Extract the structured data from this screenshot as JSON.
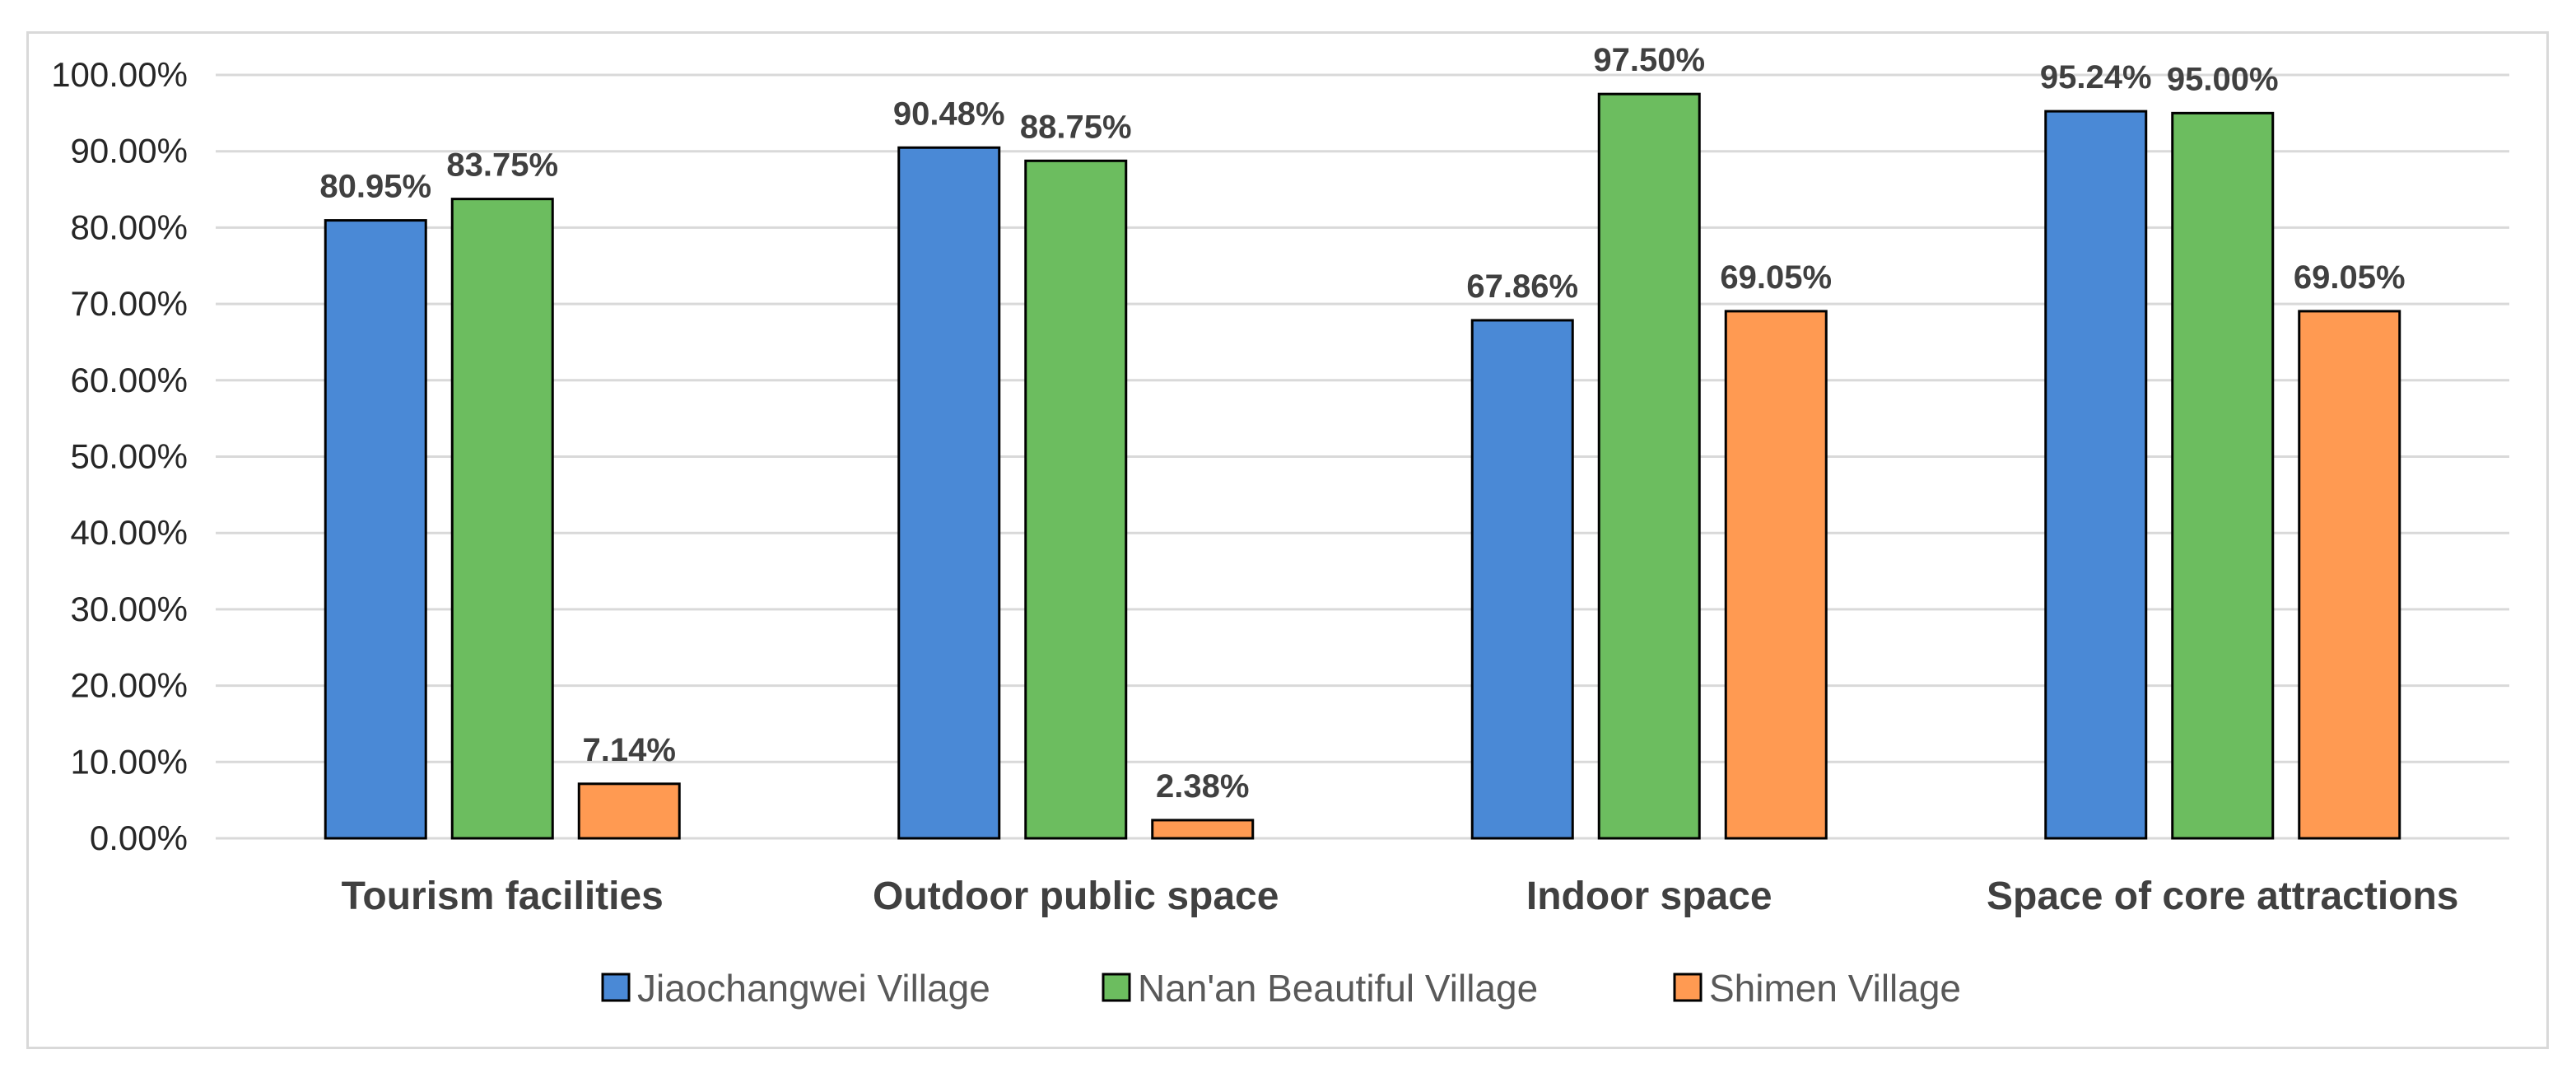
{
  "chart_data": {
    "type": "bar",
    "categories": [
      "Tourism facilities",
      "Outdoor public space",
      "Indoor space",
      "Space of core attractions"
    ],
    "series": [
      {
        "name": "Jiaochangwei Village",
        "color": "#4a89d6",
        "values": [
          80.95,
          90.48,
          67.86,
          95.24
        ],
        "labels": [
          "80.95%",
          "90.48%",
          "67.86%",
          "95.24%"
        ]
      },
      {
        "name": "Nan'an Beautiful Village",
        "color": "#6cbd5f",
        "values": [
          83.75,
          88.75,
          97.5,
          95.0
        ],
        "labels": [
          "83.75%",
          "88.75%",
          "97.50%",
          "95.00%"
        ]
      },
      {
        "name": "Shimen Village",
        "color": "#ff9a52",
        "values": [
          7.14,
          2.38,
          69.05,
          69.05
        ],
        "labels": [
          "7.14%",
          "2.38%",
          "69.05%",
          "69.05%"
        ]
      }
    ],
    "yticks": [
      "0.00%",
      "10.00%",
      "20.00%",
      "30.00%",
      "40.00%",
      "50.00%",
      "60.00%",
      "70.00%",
      "80.00%",
      "90.00%",
      "100.00%"
    ],
    "ylim": [
      0,
      100
    ],
    "title": "",
    "xlabel": "",
    "ylabel": "",
    "grid": true,
    "legend_position": "bottom",
    "colors": {
      "grid": "#d9d9d9",
      "bar_outline": "#000000",
      "text": "#404040"
    }
  }
}
